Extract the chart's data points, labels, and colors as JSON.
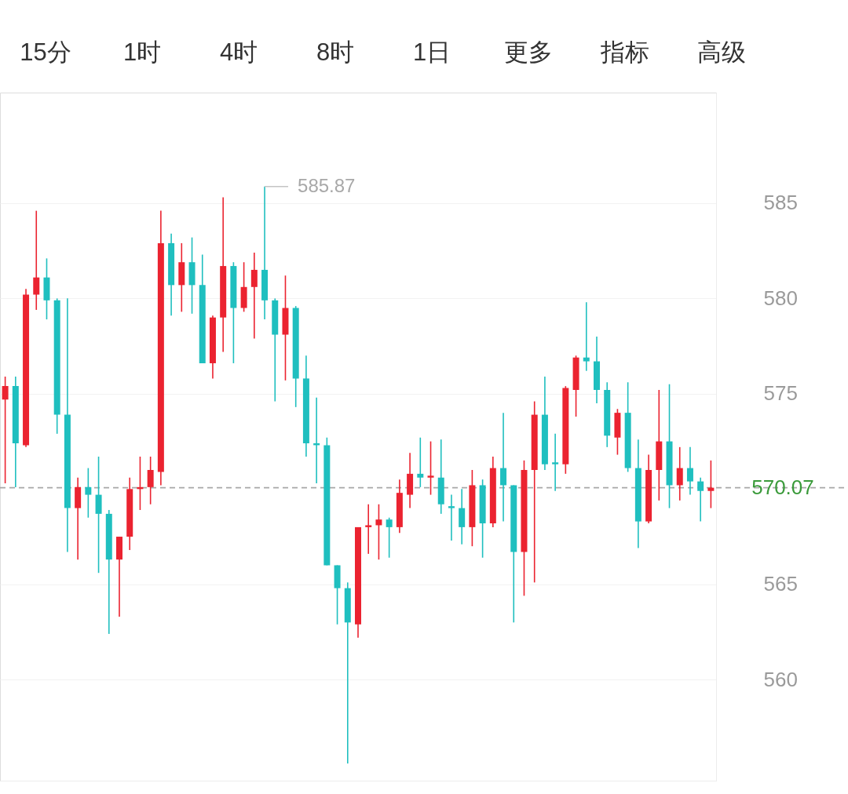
{
  "chart_data": {
    "type": "candlestick",
    "categories": [
      null,
      null,
      null,
      null,
      null,
      null,
      null,
      null,
      null,
      null,
      null,
      null,
      null,
      null,
      null,
      null,
      null,
      null,
      null,
      null,
      null,
      null,
      null,
      null,
      null,
      null,
      null,
      null,
      null,
      null,
      null,
      null,
      null,
      null,
      null,
      null,
      null,
      null,
      null,
      null,
      null,
      null,
      null,
      null,
      null,
      null,
      null,
      null,
      null,
      null,
      null,
      null,
      null,
      null,
      null,
      null,
      null,
      null,
      null,
      null,
      null,
      null,
      null,
      null,
      null,
      null,
      null,
      null,
      null
    ],
    "ohlc": [
      [
        574.7,
        575.9,
        570.3,
        575.4
      ],
      [
        575.4,
        575.9,
        570.1,
        572.4
      ],
      [
        572.3,
        580.5,
        572.2,
        580.2
      ],
      [
        580.2,
        584.6,
        579.4,
        581.1
      ],
      [
        581.1,
        582.1,
        578.9,
        579.9
      ],
      [
        579.9,
        580.0,
        572.9,
        573.9
      ],
      [
        573.9,
        580.0,
        566.7,
        569.0
      ],
      [
        569.0,
        570.6,
        566.3,
        570.1
      ],
      [
        570.1,
        571.1,
        568.5,
        569.7
      ],
      [
        569.7,
        571.7,
        565.6,
        568.7
      ],
      [
        568.7,
        568.9,
        562.4,
        566.3
      ],
      [
        566.3,
        567.5,
        563.3,
        567.5
      ],
      [
        567.5,
        570.6,
        566.8,
        570.0
      ],
      [
        570.0,
        571.7,
        568.9,
        570.1
      ],
      [
        570.1,
        571.7,
        569.2,
        571.0
      ],
      [
        570.9,
        584.6,
        570.2,
        582.9
      ],
      [
        582.9,
        583.4,
        579.1,
        580.7
      ],
      [
        580.7,
        582.9,
        579.3,
        581.9
      ],
      [
        581.9,
        583.2,
        579.2,
        580.7
      ],
      [
        580.7,
        582.3,
        576.6,
        576.6
      ],
      [
        576.6,
        579.1,
        575.8,
        579.0
      ],
      [
        579.0,
        585.3,
        577.2,
        581.7
      ],
      [
        581.7,
        581.9,
        576.6,
        579.5
      ],
      [
        579.5,
        581.9,
        579.3,
        580.6
      ],
      [
        580.6,
        582.4,
        577.9,
        581.5
      ],
      [
        581.5,
        585.87,
        578.9,
        579.9
      ],
      [
        579.9,
        580.0,
        574.6,
        578.1
      ],
      [
        578.1,
        581.2,
        575.7,
        579.5
      ],
      [
        579.5,
        579.6,
        574.3,
        575.8
      ],
      [
        575.8,
        577.0,
        571.7,
        572.4
      ],
      [
        572.4,
        574.8,
        570.3,
        572.3
      ],
      [
        572.3,
        572.7,
        566.0,
        566.0
      ],
      [
        566.0,
        566.0,
        562.9,
        564.8
      ],
      [
        564.8,
        565.1,
        555.6,
        563.0
      ],
      [
        562.9,
        568.0,
        562.2,
        568.0
      ],
      [
        568.0,
        569.2,
        566.6,
        568.1
      ],
      [
        568.1,
        569.2,
        566.3,
        568.4
      ],
      [
        568.4,
        568.5,
        566.4,
        568.0
      ],
      [
        568.0,
        570.5,
        567.7,
        569.8
      ],
      [
        569.7,
        571.9,
        569.0,
        570.8
      ],
      [
        570.8,
        572.7,
        570.1,
        570.6
      ],
      [
        570.6,
        572.5,
        569.7,
        570.7
      ],
      [
        570.6,
        572.6,
        568.7,
        569.2
      ],
      [
        569.1,
        569.7,
        567.3,
        569.0
      ],
      [
        569.0,
        570.0,
        567.1,
        568.0
      ],
      [
        568.0,
        571.0,
        567.0,
        570.2
      ],
      [
        570.2,
        570.5,
        566.4,
        568.2
      ],
      [
        568.2,
        571.7,
        568.0,
        571.1
      ],
      [
        571.1,
        574.0,
        568.3,
        570.2
      ],
      [
        570.2,
        570.2,
        563.0,
        566.7
      ],
      [
        566.7,
        571.5,
        564.4,
        571.0
      ],
      [
        571.0,
        574.6,
        565.1,
        573.9
      ],
      [
        573.9,
        575.9,
        571.0,
        571.3
      ],
      [
        571.4,
        572.9,
        569.9,
        571.3
      ],
      [
        571.3,
        575.4,
        570.8,
        575.3
      ],
      [
        575.2,
        577.0,
        573.8,
        576.9
      ],
      [
        576.9,
        579.8,
        576.2,
        576.7
      ],
      [
        576.7,
        578.0,
        574.5,
        575.2
      ],
      [
        575.2,
        575.6,
        572.2,
        572.8
      ],
      [
        572.7,
        574.2,
        571.8,
        574.0
      ],
      [
        574.0,
        575.6,
        570.9,
        571.1
      ],
      [
        571.1,
        572.6,
        566.9,
        568.3
      ],
      [
        568.3,
        571.8,
        568.2,
        571.0
      ],
      [
        571.0,
        575.2,
        569.4,
        572.5
      ],
      [
        572.5,
        575.5,
        569.0,
        570.2
      ],
      [
        570.2,
        572.2,
        569.4,
        571.1
      ],
      [
        571.1,
        572.2,
        569.7,
        570.4
      ],
      [
        570.4,
        570.6,
        568.3,
        569.9
      ],
      [
        569.9,
        571.5,
        569.0,
        570.07
      ]
    ],
    "colors": [
      "#eb2330",
      "#1fbfbf",
      "#eb2330",
      "#eb2330",
      "#1fbfbf",
      "#1fbfbf",
      "#1fbfbf",
      "#eb2330",
      "#1fbfbf",
      "#1fbfbf",
      "#1fbfbf",
      "#eb2330",
      "#eb2330",
      "#eb2330",
      "#eb2330",
      "#eb2330",
      "#1fbfbf",
      "#eb2330",
      "#1fbfbf",
      "#1fbfbf",
      "#eb2330",
      "#eb2330",
      "#1fbfbf",
      "#eb2330",
      "#eb2330",
      "#1fbfbf",
      "#1fbfbf",
      "#eb2330",
      "#1fbfbf",
      "#1fbfbf",
      "#1fbfbf",
      "#1fbfbf",
      "#1fbfbf",
      "#1fbfbf",
      "#eb2330",
      "#eb2330",
      "#eb2330",
      "#1fbfbf",
      "#eb2330",
      "#eb2330",
      "#1fbfbf",
      "#eb2330",
      "#1fbfbf",
      "#1fbfbf",
      "#1fbfbf",
      "#eb2330",
      "#1fbfbf",
      "#eb2330",
      "#1fbfbf",
      "#1fbfbf",
      "#eb2330",
      "#eb2330",
      "#1fbfbf",
      "#1fbfbf",
      "#eb2330",
      "#eb2330",
      "#1fbfbf",
      "#1fbfbf",
      "#1fbfbf",
      "#eb2330",
      "#1fbfbf",
      "#1fbfbf",
      "#eb2330",
      "#eb2330",
      "#1fbfbf",
      "#eb2330",
      "#1fbfbf",
      "#1fbfbf",
      "#eb2330"
    ],
    "ylim": [
      554.7,
      590.8
    ],
    "yticks": [
      560,
      565,
      575,
      580,
      585
    ],
    "grid": "y",
    "tick_labels": "y",
    "ref_lines": [
      {
        "axis": "y",
        "value": 570.07,
        "label": "570.07",
        "color": "#a8a8a8",
        "line_style": "dashed"
      }
    ],
    "annotations": [
      "15分",
      "1时",
      "4时",
      "8时",
      "1日",
      "更多",
      "指标",
      "高级",
      "585.87"
    ]
  }
}
